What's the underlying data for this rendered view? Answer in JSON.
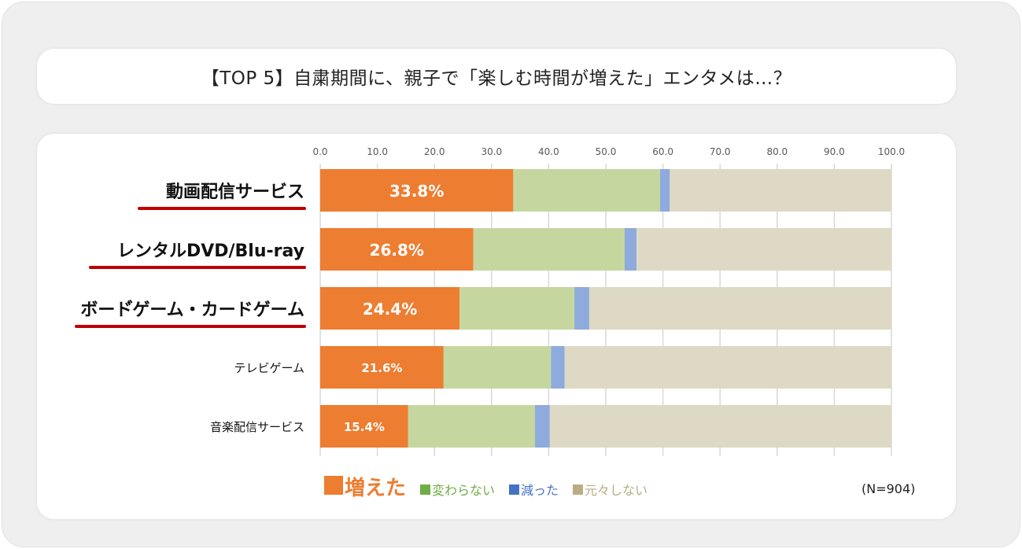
{
  "title": "【TOP 5】自粛期間に、親子で「楽しむ時間が増えた」エンタメは…？",
  "sample_size": "(N=904)",
  "chart_data": {
    "type": "bar",
    "orientation": "horizontal",
    "stacked": true,
    "xlim": [
      0,
      100
    ],
    "x_ticks": [
      "0.0",
      "10.0",
      "20.0",
      "30.0",
      "40.0",
      "50.0",
      "60.0",
      "70.0",
      "80.0",
      "90.0",
      "100.0"
    ],
    "grid": true,
    "legend_position": "bottom",
    "categories": [
      "動画配信サービス",
      "レンタルDVD/Blu-ray",
      "ボード゙ゲーム・カードゲーム",
      "テレビゲーム",
      "音楽配信サービス"
    ],
    "highlighted_categories": [
      0,
      1,
      2
    ],
    "series": [
      {
        "name": "増えた",
        "color": "#ed7d31",
        "values": [
          33.8,
          26.8,
          24.4,
          21.6,
          15.4
        ],
        "labels": [
          "33.8%",
          "26.8%",
          "24.4%",
          "21.6%",
          "15.4%"
        ]
      },
      {
        "name": "変わらない",
        "color": "#c5d79f",
        "legend_color": "#70ad47",
        "values": [
          25.7,
          26.5,
          20.1,
          18.8,
          22.2
        ]
      },
      {
        "name": "減った",
        "color": "#8faadc",
        "legend_color": "#4472c4",
        "values": [
          1.7,
          2.1,
          2.6,
          2.4,
          2.6
        ]
      },
      {
        "name": "元々しない",
        "color": "#ded9c4",
        "legend_color": "#b8ad85",
        "values": [
          38.8,
          44.6,
          52.9,
          57.2,
          59.8
        ]
      }
    ]
  }
}
